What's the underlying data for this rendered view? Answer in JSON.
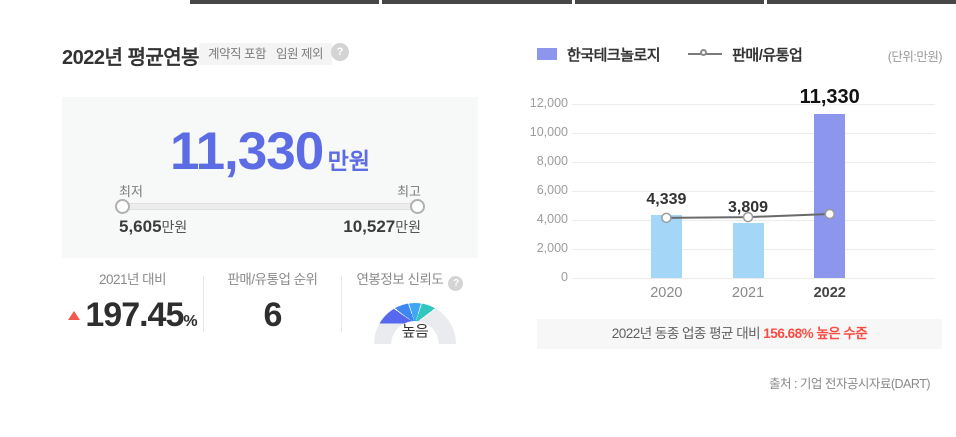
{
  "top_strip": {
    "segments": 4
  },
  "header": {
    "title": "2022년 평균연봉",
    "tags": [
      "계약직 포함",
      "임원 제외"
    ],
    "help_icon": "?"
  },
  "summary": {
    "value": "11,330",
    "unit": "만원",
    "min_label": "최저",
    "max_label": "최고",
    "min_value": "5,605",
    "min_unit": "만원",
    "max_value": "10,527",
    "max_unit": "만원"
  },
  "stats": {
    "yoy": {
      "label": "2021년 대비",
      "value": "197.45",
      "unit": "%",
      "direction": "up"
    },
    "rank": {
      "label": "판매/유통업 순위",
      "value": "6"
    },
    "reliability": {
      "label": "연봉정보 신뢰도",
      "help_icon": "?",
      "level": "높음",
      "gauge_colors": [
        "#5668ef",
        "#3e86f2",
        "#3ea6f2",
        "#2fc7bf",
        "#e9ebee"
      ]
    }
  },
  "chart": {
    "legend": [
      {
        "name": "한국테크놀로지",
        "type": "bar"
      },
      {
        "name": "판매/유통업",
        "type": "line"
      }
    ],
    "unit_label": "(단위:만원)"
  },
  "chart_data": {
    "type": "bar",
    "categories": [
      "2020",
      "2021",
      "2022"
    ],
    "series": [
      {
        "name": "한국테크놀로지",
        "type": "bar",
        "values": [
          4339,
          3809,
          11330
        ],
        "labels": [
          "4,339",
          "3,809",
          "11,330"
        ],
        "colors": [
          "#a4d6f8",
          "#a4d6f8",
          "#8b96ec"
        ]
      },
      {
        "name": "판매/유통업",
        "type": "line",
        "values": [
          4150,
          4200,
          4414
        ],
        "approx": true,
        "color": "#6a6a6a"
      }
    ],
    "ylim": [
      0,
      12000
    ],
    "yticks": [
      0,
      2000,
      4000,
      6000,
      8000,
      10000,
      12000
    ],
    "grid": true,
    "legend_position": "top",
    "highlight_category": "2022"
  },
  "banner": {
    "prefix": "2022년 동종 업종 평균 대비 ",
    "highlight": "156.68% 높은 수준"
  },
  "source": "출처 : 기업 전자공시자료(DART)",
  "colors": {
    "accent_blue": "#5b6ce4",
    "bar_light": "#a4d6f8",
    "bar_accent": "#8b96ec",
    "line_gray": "#6a6a6a",
    "red": "#fa4b42",
    "panel_bg": "#f7f8f8",
    "strip_dark": "#474747"
  }
}
